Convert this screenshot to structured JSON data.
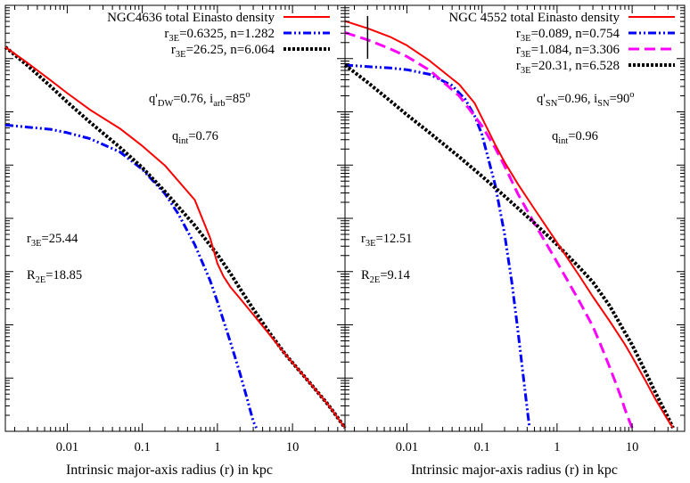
{
  "chart_data": [
    {
      "type": "line",
      "x_scale": "log",
      "xlim": [
        0.0015,
        50
      ],
      "y_scale": "log",
      "ylim": [
        0,
        100
      ],
      "y_tick_labels": "none",
      "xlabel": "Intrinsic major-axis radius (r) in kpc",
      "x_tick_labels": [
        "0.01",
        "0.1",
        "1",
        "10"
      ],
      "x_ticks": [
        0.01,
        0.1,
        1,
        10
      ],
      "grid": false,
      "legend_position": "top-right",
      "series": [
        {
          "name": "NGC4636 total Einasto density",
          "color": "#ff0000",
          "style": "solid",
          "x": [
            0.0015,
            0.003,
            0.006,
            0.01,
            0.02,
            0.05,
            0.1,
            0.2,
            0.5,
            0.8,
            1.0,
            1.2,
            1.5,
            2,
            3,
            5,
            8,
            10,
            15,
            20,
            30,
            40,
            50
          ],
          "y": [
            90.2,
            86.4,
            82.4,
            79.4,
            75.5,
            71.1,
            67.0,
            62.4,
            54.3,
            45.4,
            39.4,
            36.4,
            33.8,
            31.2,
            27.4,
            22.6,
            18.1,
            16.1,
            12.5,
            9.9,
            6.2,
            3.2,
            0.8
          ]
        },
        {
          "name": "r_3E=0.6325, n=1.282",
          "legend_main": "r",
          "legend_sub": "3E",
          "legend_rest": "=0.6325, n=1.282",
          "color": "#0000ff",
          "style": "dash-dot",
          "x": [
            0.0015,
            0.003,
            0.006,
            0.01,
            0.02,
            0.05,
            0.1,
            0.2,
            0.3,
            0.5,
            0.8,
            1.0,
            1.5,
            2.0,
            2.5,
            3.0,
            3.3
          ],
          "y": [
            71.9,
            71.4,
            70.9,
            70.1,
            68.7,
            65.6,
            61.5,
            55.8,
            51.1,
            43.8,
            35.4,
            30.4,
            20.8,
            13.6,
            7.5,
            2.3,
            0.8
          ]
        },
        {
          "name": "r_3E=26.25, n=6.064",
          "legend_main": "r",
          "legend_sub": "3E",
          "legend_rest": "=26.25, n=6.064",
          "color": "#000000",
          "style": "dotted",
          "x": [
            0.0015,
            0.003,
            0.006,
            0.01,
            0.02,
            0.05,
            0.1,
            0.2,
            0.5,
            1.0,
            1.5,
            2,
            3,
            5,
            8,
            10,
            15,
            20,
            30,
            40,
            50
          ],
          "y": [
            90.2,
            85.8,
            81.0,
            77.3,
            72.6,
            66.7,
            61.9,
            56.3,
            48.3,
            41.5,
            37.0,
            33.5,
            28.7,
            23.0,
            18.1,
            16.1,
            12.5,
            9.9,
            6.2,
            3.2,
            0.8
          ]
        }
      ],
      "annotations": [
        {
          "main": "q'",
          "sub": "DW",
          "rest": "=0.76,  i",
          "main2": "",
          "sub2": "arb",
          "rest2": "=85",
          "sup2": "o"
        },
        {
          "main": "q",
          "sub": "int",
          "rest": "=0.76"
        },
        {
          "main": "r",
          "sub": "3E",
          "rest": "=25.44"
        },
        {
          "main": "R",
          "sub": "2E",
          "rest": "=18.85"
        }
      ]
    },
    {
      "type": "line",
      "x_scale": "log",
      "xlim": [
        0.0015,
        50
      ],
      "y_scale": "log",
      "ylim": [
        0,
        100
      ],
      "y_tick_labels": "none",
      "xlabel": "Intrinsic major-axis radius (r) in kpc",
      "x_tick_labels": [
        "0.01",
        "0.1",
        "1",
        "10"
      ],
      "x_ticks": [
        0.01,
        0.1,
        1,
        10
      ],
      "grid": false,
      "legend_position": "top-right",
      "vertical_marker_x": 0.003,
      "series": [
        {
          "name": "NGC 4552 total Einasto density",
          "color": "#ff0000",
          "style": "solid",
          "x": [
            0.0015,
            0.003,
            0.006,
            0.01,
            0.02,
            0.05,
            0.08,
            0.1,
            0.15,
            0.2,
            0.3,
            0.5,
            1.0,
            2,
            3,
            5,
            8,
            10,
            15,
            20,
            30,
            35
          ],
          "y": [
            96.3,
            94.6,
            92.6,
            90.6,
            87.0,
            81.4,
            77.0,
            73.6,
            67.3,
            63.2,
            58.1,
            52.2,
            44.3,
            36.4,
            31.6,
            25.9,
            20.4,
            17.5,
            11.9,
            7.8,
            2.6,
            0.8
          ]
        },
        {
          "name": "r_3E=0.089, n=0.754",
          "legend_main": "r",
          "legend_sub": "3E",
          "legend_rest": "=0.089, n=0.754",
          "color": "#0000ff",
          "style": "dash-dot",
          "x": [
            0.0015,
            0.003,
            0.006,
            0.01,
            0.02,
            0.04,
            0.06,
            0.08,
            0.1,
            0.15,
            0.2,
            0.25,
            0.3,
            0.35,
            0.4,
            0.43
          ],
          "y": [
            86.0,
            85.6,
            85.3,
            84.9,
            83.8,
            81.2,
            77.9,
            74.0,
            69.7,
            57.8,
            46.3,
            34.9,
            23.9,
            13.8,
            5.2,
            0.8
          ]
        },
        {
          "name": "r_3E=1.084, n=3.306",
          "legend_main": "r",
          "legend_sub": "3E",
          "legend_rest": "=1.084, n=3.306",
          "color": "#ff00ff",
          "style": "dashed",
          "x": [
            0.0015,
            0.003,
            0.006,
            0.01,
            0.02,
            0.05,
            0.1,
            0.15,
            0.2,
            0.3,
            0.5,
            1.0,
            2,
            3,
            4,
            5,
            6,
            7,
            8,
            9,
            10
          ],
          "y": [
            93.6,
            91.9,
            89.8,
            88.0,
            84.8,
            78.7,
            71.7,
            66.5,
            62.3,
            55.8,
            48.8,
            39.7,
            30.4,
            24.6,
            19.4,
            15.1,
            11.5,
            8.3,
            5.2,
            2.8,
            0.8
          ]
        },
        {
          "name": "r_3E=20.31, n=6.528",
          "legend_main": "r",
          "legend_sub": "3E",
          "legend_rest": "=20.31, n=6.528",
          "color": "#000000",
          "style": "dotted",
          "x": [
            0.0015,
            0.003,
            0.006,
            0.01,
            0.02,
            0.05,
            0.1,
            0.2,
            0.5,
            1.0,
            2,
            3,
            5,
            8,
            10,
            15,
            20,
            30,
            35
          ],
          "y": [
            86.0,
            81.9,
            77.6,
            74.3,
            70.1,
            64.4,
            59.9,
            55.2,
            48.9,
            43.8,
            38.4,
            35.0,
            29.5,
            23.2,
            20.3,
            14.0,
            9.4,
            3.3,
            0.8
          ]
        }
      ],
      "annotations": [
        {
          "main": "q'",
          "sub": "SN",
          "rest": "=0.96,  i",
          "main2": "",
          "sub2": "SN",
          "rest2": "=90",
          "sup2": "o"
        },
        {
          "main": "q",
          "sub": "int",
          "rest": "=0.96"
        },
        {
          "main": "r",
          "sub": "3E",
          "rest": "=12.51"
        },
        {
          "main": "R",
          "sub": "2E",
          "rest": "=9.14"
        }
      ]
    }
  ]
}
